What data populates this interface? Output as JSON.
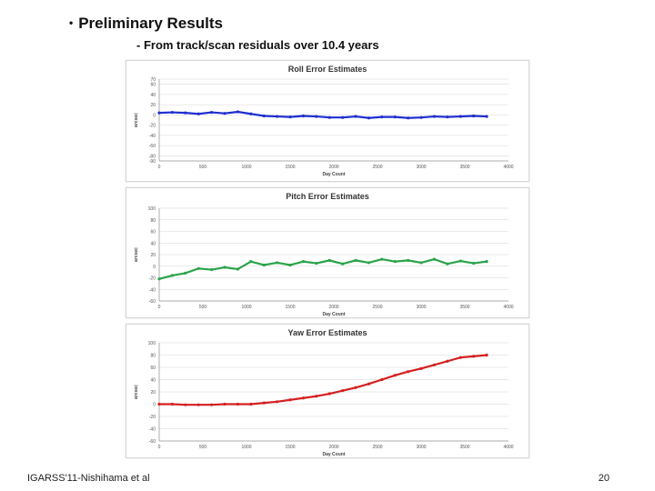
{
  "slide": {
    "bullet_marker": "•",
    "heading": "Preliminary Results",
    "subheading": "- From track/scan residuals over 10.4 years",
    "footer_left": "IGARSS'11-Nishihama et al",
    "page_number": "20"
  },
  "chart_data": [
    {
      "type": "scatter",
      "title": "Roll Error Estimates",
      "xlabel": "Day Count",
      "ylabel": "arcsec",
      "color": "#1f2fd0",
      "xlim": [
        0,
        4000
      ],
      "ylim": [
        -90,
        70
      ],
      "xticks": [
        0,
        500,
        1000,
        1500,
        2000,
        2500,
        3000,
        3500,
        4000
      ],
      "yticks": [
        70,
        60,
        40,
        20,
        0,
        -20,
        -40,
        -60,
        -80,
        -90
      ],
      "series": [
        {
          "name": "Roll",
          "x": [
            0,
            150,
            300,
            450,
            600,
            750,
            900,
            1050,
            1200,
            1350,
            1500,
            1650,
            1800,
            1950,
            2100,
            2250,
            2400,
            2550,
            2700,
            2850,
            3000,
            3150,
            3300,
            3450,
            3600,
            3750
          ],
          "y": [
            4,
            5,
            4,
            2,
            5,
            3,
            6,
            2,
            -2,
            -3,
            -4,
            -2,
            -3,
            -5,
            -5,
            -3,
            -6,
            -4,
            -4,
            -6,
            -5,
            -3,
            -4,
            -3,
            -2,
            -3
          ]
        }
      ]
    },
    {
      "type": "scatter",
      "title": "Pitch Error Estimates",
      "xlabel": "Day Count",
      "ylabel": "arcsec",
      "color": "#2aa34a",
      "xlim": [
        0,
        4000
      ],
      "ylim": [
        -60,
        100
      ],
      "xticks": [
        0,
        500,
        1000,
        1500,
        2000,
        2500,
        3000,
        3500,
        4000
      ],
      "yticks": [
        100,
        80,
        60,
        40,
        20,
        0,
        -20,
        -40,
        -60
      ],
      "series": [
        {
          "name": "Pitch",
          "x": [
            0,
            150,
            300,
            450,
            600,
            750,
            900,
            1050,
            1200,
            1350,
            1500,
            1650,
            1800,
            1950,
            2100,
            2250,
            2400,
            2550,
            2700,
            2850,
            3000,
            3150,
            3300,
            3450,
            3600,
            3750
          ],
          "y": [
            -22,
            -16,
            -12,
            -4,
            -6,
            -2,
            -5,
            8,
            2,
            6,
            2,
            8,
            5,
            10,
            4,
            10,
            6,
            12,
            8,
            10,
            6,
            12,
            4,
            9,
            5,
            8
          ]
        }
      ]
    },
    {
      "type": "scatter",
      "title": "Yaw Error Estimates",
      "xlabel": "Day Count",
      "ylabel": "arcsec",
      "color": "#d42020",
      "xlim": [
        0,
        4000
      ],
      "ylim": [
        -60,
        100
      ],
      "xticks": [
        0,
        500,
        1000,
        1500,
        2000,
        2500,
        3000,
        3500,
        4000
      ],
      "yticks": [
        100,
        80,
        60,
        40,
        20,
        0,
        -20,
        -40,
        -60
      ],
      "series": [
        {
          "name": "Yaw",
          "x": [
            0,
            150,
            300,
            450,
            600,
            750,
            900,
            1050,
            1200,
            1350,
            1500,
            1650,
            1800,
            1950,
            2100,
            2250,
            2400,
            2550,
            2700,
            2850,
            3000,
            3150,
            3300,
            3450,
            3600,
            3750
          ],
          "y": [
            0,
            0,
            -1,
            -1,
            -1,
            0,
            0,
            0,
            2,
            4,
            7,
            10,
            13,
            17,
            22,
            27,
            33,
            40,
            47,
            53,
            58,
            64,
            70,
            76,
            78,
            80
          ]
        }
      ]
    }
  ]
}
